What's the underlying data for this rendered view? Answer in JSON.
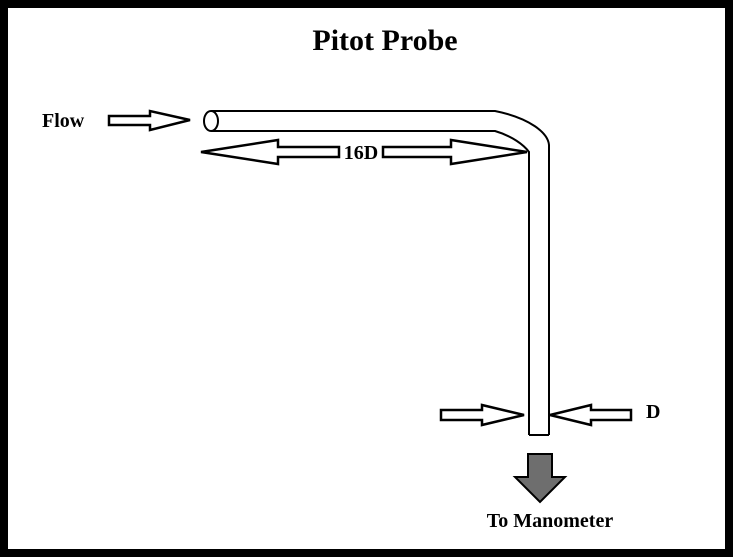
{
  "title": "Pitot Probe",
  "labels": {
    "flow": "Flow",
    "length": "16D",
    "diameter": "D",
    "destination": "To Manometer"
  },
  "colors": {
    "background": "#ffffff",
    "border": "#000000",
    "stroke": "#000000",
    "outlet_arrow": "#6e6e6e"
  },
  "icons": {
    "flow_arrow": "arrow-right-outline-icon",
    "length_arrows": "double-arrow-outline-icon",
    "diameter_arrows": "inward-arrows-outline-icon",
    "outlet_arrow": "arrow-down-filled-icon"
  }
}
